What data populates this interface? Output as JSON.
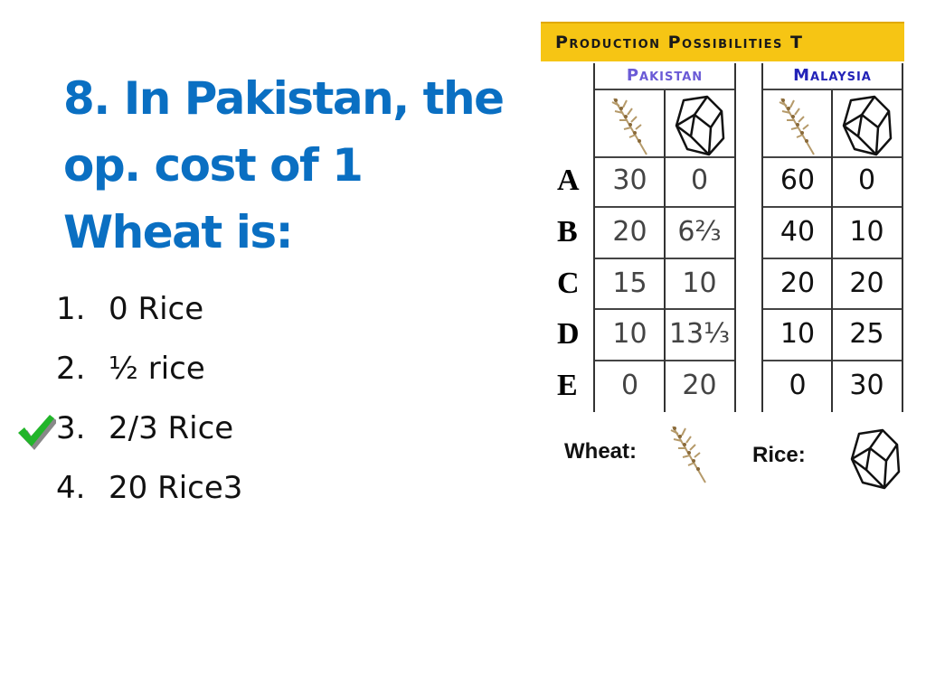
{
  "question": {
    "title_lines": [
      "8. In Pakistan, the",
      "op. cost of 1",
      "Wheat is:"
    ],
    "options": [
      {
        "number": "1.",
        "text": "0 Rice"
      },
      {
        "number": "2.",
        "text": "½ rice"
      },
      {
        "number": "3.",
        "text": "2/3 Rice",
        "correct": true
      },
      {
        "number": "4.",
        "text": "20 Rice3"
      }
    ],
    "correct_mark_icon": "green-checkmark-icon",
    "title_color": "#0a6fc2",
    "check_color": "#22b52a"
  },
  "table": {
    "banner": "Production Possibilities T",
    "banner_color": "#f6c514",
    "countries": [
      {
        "name": "Pakistan",
        "color": "#6a5ad6"
      },
      {
        "name": "Malaysia",
        "color": "#2323b8"
      }
    ],
    "column_icons": [
      "wheat-icon",
      "rice-icon"
    ],
    "rows": [
      {
        "label": "A",
        "pakistan": [
          "30",
          "0"
        ],
        "malaysia": [
          "60",
          "0"
        ]
      },
      {
        "label": "B",
        "pakistan": [
          "20",
          "6⅔"
        ],
        "malaysia": [
          "40",
          "10"
        ]
      },
      {
        "label": "C",
        "pakistan": [
          "15",
          "10"
        ],
        "malaysia": [
          "20",
          "20"
        ]
      },
      {
        "label": "D",
        "pakistan": [
          "10",
          "13⅓"
        ],
        "malaysia": [
          "10",
          "25"
        ]
      },
      {
        "label": "E",
        "pakistan": [
          "0",
          "20"
        ],
        "malaysia": [
          "0",
          "30"
        ]
      }
    ],
    "legend": {
      "wheat_label": "Wheat:",
      "rice_label": "Rice:"
    }
  }
}
